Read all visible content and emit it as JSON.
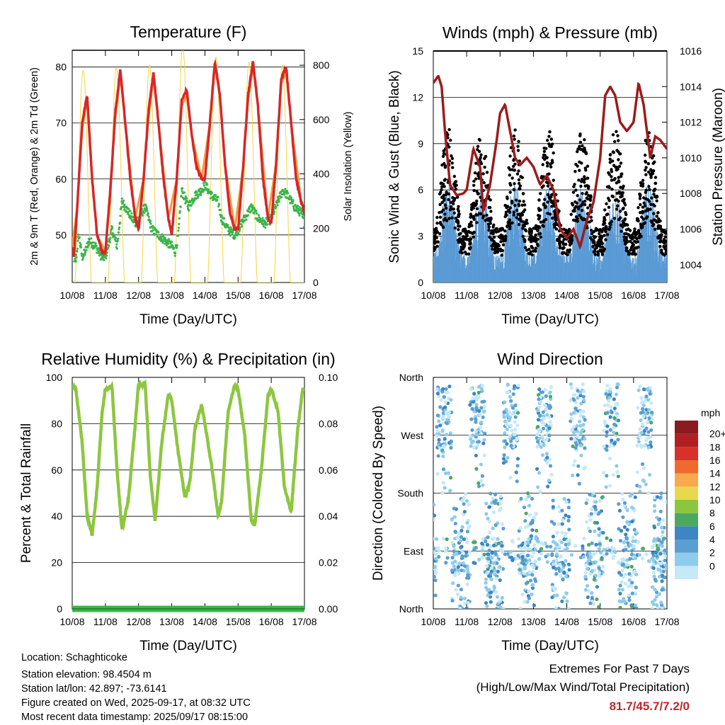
{
  "chart_data": [
    {
      "type": "line",
      "title": "Temperature (F)",
      "ylabel": "2m & 9m T (Red, Orange) & 2m Td (Green)",
      "y2label": "Solar Insolation (Yellow)",
      "xlabel": "Time (Day/UTC)",
      "xticks": [
        "10/08",
        "11/08",
        "12/08",
        "13/08",
        "14/08",
        "15/08",
        "16/08",
        "17/08"
      ],
      "yticks": [
        50,
        60,
        70,
        80
      ],
      "y2ticks": [
        0,
        200,
        400,
        600,
        800
      ],
      "ylim": [
        41.5,
        83
      ],
      "y2lim": [
        0,
        855
      ],
      "series": [
        {
          "name": "2m T",
          "color": "#d62728",
          "x": [
            0.0,
            0.05,
            0.15,
            0.3,
            0.45,
            0.6,
            0.75,
            0.9,
            1.0,
            1.15,
            1.3,
            1.45,
            1.6,
            1.75,
            1.9,
            2.0,
            2.15,
            2.3,
            2.45,
            2.6,
            2.75,
            2.9,
            3.0,
            3.15,
            3.3,
            3.45,
            3.6,
            3.75,
            3.9,
            4.0,
            4.15,
            4.3,
            4.45,
            4.6,
            4.75,
            4.9,
            5.0,
            5.15,
            5.3,
            5.45,
            5.6,
            5.75,
            5.9,
            6.0,
            6.15,
            6.3,
            6.45,
            6.6,
            6.75,
            6.9,
            7.0
          ],
          "y": [
            48,
            46,
            55,
            70,
            75,
            60,
            50,
            47,
            47,
            58,
            72,
            79.5,
            70,
            60,
            53,
            51,
            60,
            72,
            79,
            70,
            60,
            53,
            50,
            60,
            74,
            76,
            68,
            62,
            60,
            60,
            70,
            81,
            75,
            63,
            54,
            51,
            51,
            62,
            75,
            81,
            73,
            60,
            53,
            52,
            63,
            78,
            80,
            70,
            60,
            56,
            54
          ]
        },
        {
          "name": "9m T",
          "color": "#f39c3d",
          "x": [
            0.0,
            0.15,
            0.3,
            0.45,
            0.6,
            0.75,
            1.0,
            1.3,
            1.45,
            1.6,
            1.9,
            2.15,
            2.3,
            2.45,
            2.6,
            2.9,
            3.15,
            3.3,
            3.45,
            3.6,
            3.9,
            4.15,
            4.3,
            4.45,
            4.6,
            4.9,
            5.15,
            5.3,
            5.45,
            5.6,
            5.9,
            6.15,
            6.3,
            6.45,
            6.6,
            6.9,
            7.0
          ],
          "y": [
            48,
            55,
            69,
            74,
            60,
            50,
            47,
            71,
            78.5,
            70,
            53,
            60,
            71,
            78,
            70,
            53,
            60,
            73,
            75,
            68,
            60,
            70,
            80,
            75,
            63,
            51,
            62,
            74,
            80,
            73,
            53,
            63,
            77,
            79,
            70,
            56,
            54
          ]
        },
        {
          "name": "2m Td",
          "color": "#3cb44b",
          "x": [
            0.0,
            0.1,
            0.2,
            0.3,
            0.4,
            0.5,
            0.7,
            0.9,
            1.0,
            1.2,
            1.35,
            1.5,
            1.7,
            1.9,
            2.0,
            2.2,
            2.4,
            2.6,
            2.8,
            3.0,
            3.1,
            3.2,
            3.3,
            3.5,
            3.7,
            3.9,
            4.0,
            4.2,
            4.4,
            4.5,
            4.7,
            4.9,
            5.0,
            5.2,
            5.4,
            5.6,
            5.8,
            6.0,
            6.2,
            6.35,
            6.5,
            6.7,
            6.9,
            7.0
          ],
          "y": [
            47,
            45,
            50,
            46,
            47,
            49,
            48,
            46,
            46,
            51,
            48,
            56,
            54,
            52,
            53,
            55,
            51,
            50,
            49,
            48,
            47,
            50,
            58,
            55,
            57,
            58,
            59,
            57,
            56,
            53,
            51,
            50,
            51,
            53,
            55,
            53,
            52,
            53,
            56,
            58,
            57,
            55,
            54,
            52
          ]
        },
        {
          "name": "Solar Insolation",
          "color": "#f5d442",
          "axis": "y2",
          "days_peak": [
            780,
            790,
            800,
            870,
            830,
            810,
            800
          ]
        }
      ]
    },
    {
      "type": "scatter",
      "title": "Winds (mph) & Pressure (mb)",
      "ylabel": "Sonic Wind & Gust (Blue, Black)",
      "y2label": "Station Pressure (Maroon)",
      "xlabel": "Time (Day/UTC)",
      "xticks": [
        "10/08",
        "11/08",
        "12/08",
        "13/08",
        "14/08",
        "15/08",
        "16/08",
        "17/08"
      ],
      "yticks": [
        0,
        3,
        6,
        9,
        12,
        15
      ],
      "y2ticks": [
        1004,
        1006,
        1008,
        1010,
        1012,
        1014,
        1016
      ],
      "ylim": [
        0,
        15
      ],
      "y2lim": [
        1003,
        1016
      ],
      "series": [
        {
          "name": "Wind",
          "color": "#5b9bd5"
        },
        {
          "name": "Gust",
          "color": "#000000"
        },
        {
          "name": "Pressure",
          "color": "#9b1c1c",
          "x": [
            0.0,
            0.15,
            0.25,
            0.35,
            0.5,
            0.7,
            0.9,
            1.0,
            1.2,
            1.4,
            1.5,
            1.7,
            1.9,
            2.0,
            2.15,
            2.3,
            2.45,
            2.6,
            2.8,
            3.0,
            3.2,
            3.4,
            3.6,
            3.8,
            4.0,
            4.2,
            4.4,
            4.6,
            4.8,
            5.0,
            5.15,
            5.3,
            5.45,
            5.6,
            5.8,
            6.0,
            6.15,
            6.3,
            6.5,
            6.65,
            6.8,
            7.0
          ],
          "y": [
            1014.2,
            1014.6,
            1014.0,
            1011.5,
            1008.5,
            1007.9,
            1008.0,
            1008.2,
            1010.5,
            1009.5,
            1007.0,
            1008.5,
            1011.0,
            1012.5,
            1013.0,
            1011.5,
            1010.0,
            1009.6,
            1010.0,
            1009.5,
            1008.5,
            1009.0,
            1008.2,
            1006.0,
            1005.5,
            1006.0,
            1005.0,
            1006.5,
            1007.5,
            1010.0,
            1013.5,
            1014.0,
            1013.5,
            1012.0,
            1011.5,
            1012.0,
            1014.2,
            1013.0,
            1010.0,
            1011.2,
            1011.0,
            1010.5
          ]
        }
      ]
    },
    {
      "type": "line",
      "title": "Relative Humidity (%) & Precipitation (in)",
      "ylabel": "Percent & Total Rainfall",
      "xlabel": "Time (Day/UTC)",
      "xticks": [
        "10/08",
        "11/08",
        "12/08",
        "13/08",
        "14/08",
        "15/08",
        "16/08",
        "17/08"
      ],
      "yticks": [
        0,
        20,
        40,
        60,
        80,
        100
      ],
      "y2ticks": [
        "0.00",
        "0.02",
        "0.04",
        "0.06",
        "0.08",
        "0.10"
      ],
      "ylim": [
        0,
        100
      ],
      "series": [
        {
          "name": "Relative Humidity",
          "color": "#8dc63f",
          "x": [
            0.0,
            0.1,
            0.3,
            0.45,
            0.6,
            0.75,
            0.9,
            1.0,
            1.2,
            1.35,
            1.5,
            1.7,
            1.9,
            2.0,
            2.2,
            2.35,
            2.5,
            2.7,
            2.9,
            3.0,
            3.2,
            3.4,
            3.55,
            3.7,
            3.9,
            4.0,
            4.2,
            4.4,
            4.5,
            4.7,
            4.9,
            5.0,
            5.2,
            5.4,
            5.5,
            5.7,
            5.9,
            6.0,
            6.2,
            6.4,
            6.6,
            6.8,
            6.95,
            7.0
          ],
          "y": [
            95,
            96,
            72,
            40,
            32,
            52,
            85,
            95,
            96,
            60,
            34,
            48,
            80,
            97,
            97,
            58,
            38,
            72,
            93,
            90,
            67,
            48,
            55,
            78,
            88,
            80,
            62,
            40,
            46,
            85,
            97,
            95,
            75,
            38,
            36,
            60,
            92,
            95,
            86,
            52,
            42,
            78,
            95,
            95
          ]
        },
        {
          "name": "Total Precipitation",
          "color": "#3cb44b",
          "x": [
            0,
            7
          ],
          "y": [
            0,
            0
          ]
        }
      ]
    },
    {
      "type": "scatter",
      "title": "Wind Direction",
      "ylabel": "Direction (Colored By Speed)",
      "xlabel": "Time (Day/UTC)",
      "xticks": [
        "10/08",
        "11/08",
        "12/08",
        "13/08",
        "14/08",
        "15/08",
        "16/08",
        "17/08"
      ],
      "yticks": [
        "North",
        "East",
        "South",
        "West",
        "North"
      ],
      "ylim": [
        0,
        360
      ],
      "colorbar": {
        "unit": "mph",
        "labels": [
          "0",
          "2",
          "4",
          "6",
          "8",
          "10",
          "12",
          "14",
          "16",
          "18",
          "20+"
        ],
        "colors": [
          "#c6e8f7",
          "#8fcbea",
          "#5b9fd0",
          "#3d85c3",
          "#4ca85e",
          "#8cc63e",
          "#e9d84e",
          "#f7a94b",
          "#ef6a2c",
          "#d6322a",
          "#b01f23",
          "#8c1a1e"
        ]
      }
    }
  ],
  "info": {
    "location": "Location: Schaghticoke",
    "elevation": "Station elevation: 98.4504 m",
    "latlon": "Station lat/lon: 42.897; -73.6141",
    "created": "Figure created on Wed, 2025-09-17, at 08:32 UTC",
    "recent": "Most recent data timestamp: 2025/09/17 08:15:00"
  },
  "extremes": {
    "title": "Extremes For Past 7 Days",
    "subtitle": "(High/Low/Max Wind/Total Precipitation)",
    "value": "81.7/45.7/7.2/0"
  }
}
